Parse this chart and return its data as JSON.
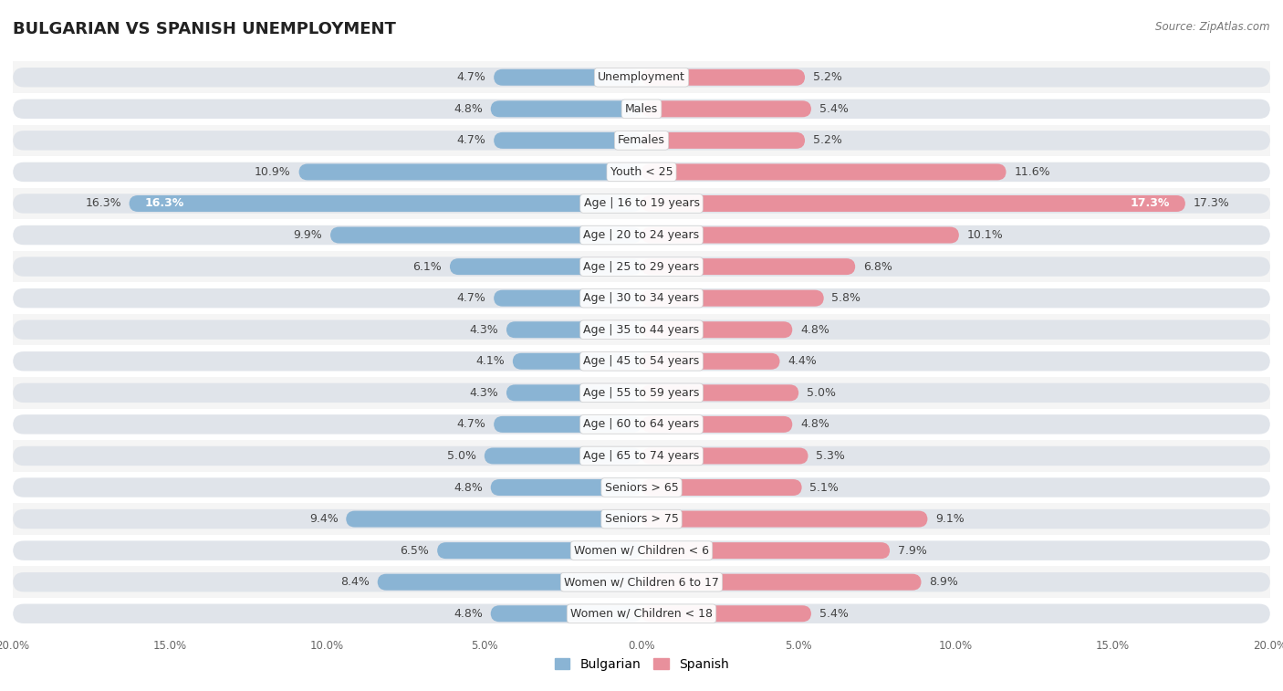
{
  "title": "BULGARIAN VS SPANISH UNEMPLOYMENT",
  "source": "Source: ZipAtlas.com",
  "categories": [
    "Unemployment",
    "Males",
    "Females",
    "Youth < 25",
    "Age | 16 to 19 years",
    "Age | 20 to 24 years",
    "Age | 25 to 29 years",
    "Age | 30 to 34 years",
    "Age | 35 to 44 years",
    "Age | 45 to 54 years",
    "Age | 55 to 59 years",
    "Age | 60 to 64 years",
    "Age | 65 to 74 years",
    "Seniors > 65",
    "Seniors > 75",
    "Women w/ Children < 6",
    "Women w/ Children 6 to 17",
    "Women w/ Children < 18"
  ],
  "bulgarian": [
    4.7,
    4.8,
    4.7,
    10.9,
    16.3,
    9.9,
    6.1,
    4.7,
    4.3,
    4.1,
    4.3,
    4.7,
    5.0,
    4.8,
    9.4,
    6.5,
    8.4,
    4.8
  ],
  "spanish": [
    5.2,
    5.4,
    5.2,
    11.6,
    17.3,
    10.1,
    6.8,
    5.8,
    4.8,
    4.4,
    5.0,
    4.8,
    5.3,
    5.1,
    9.1,
    7.9,
    8.9,
    5.4
  ],
  "bulgarian_color": "#8ab4d4",
  "spanish_color": "#e8909c",
  "bar_bg_color": "#e0e4ea",
  "x_max": 20.0,
  "label_fontsize": 9.0,
  "title_fontsize": 13,
  "legend_fontsize": 10,
  "bg_stripe1": "#f5f5f5",
  "bg_stripe2": "#ffffff"
}
